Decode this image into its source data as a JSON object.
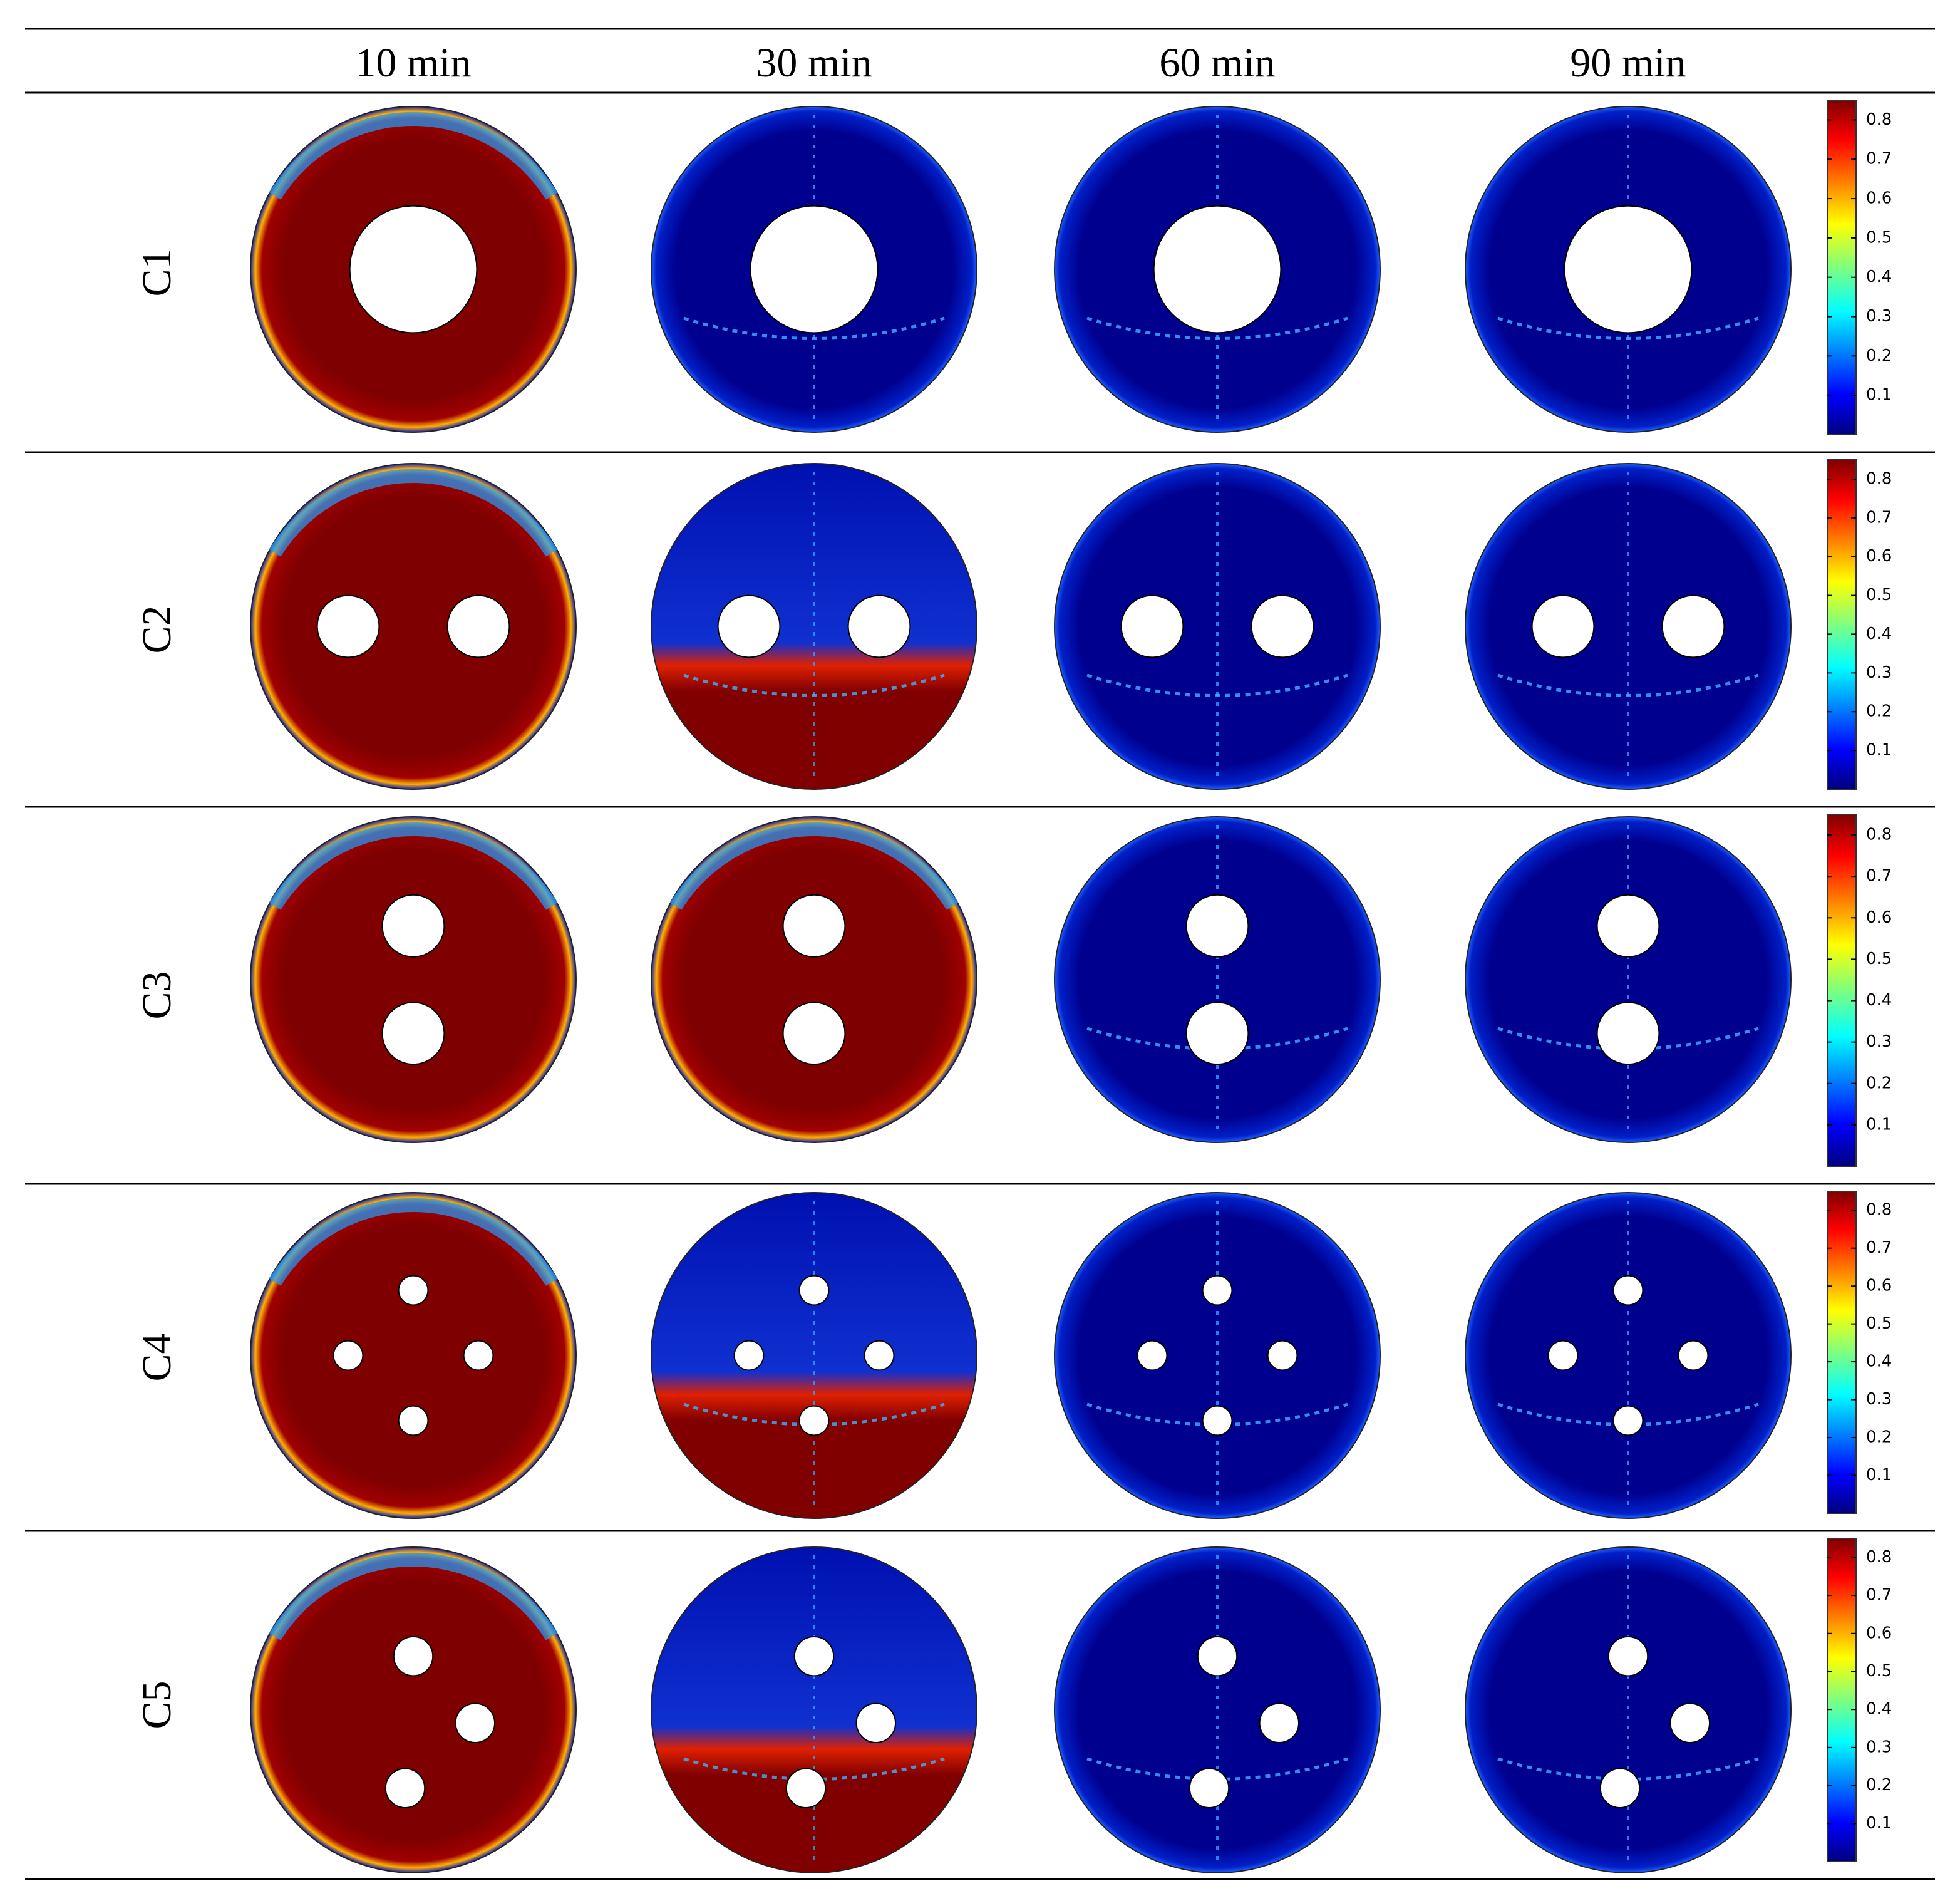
{
  "columns": [
    "10 min",
    "30 min",
    "60 min",
    "90 min"
  ],
  "rows": [
    {
      "label": "C1",
      "colorbar": {
        "range": [
          0,
          0.85
        ],
        "ticks": [
          0.1,
          0.2,
          0.3,
          0.4,
          0.5,
          0.6,
          0.7,
          0.8
        ]
      }
    },
    {
      "label": "C2",
      "colorbar": {
        "range": [
          0,
          0.85
        ],
        "ticks": [
          0.1,
          0.2,
          0.3,
          0.4,
          0.5,
          0.6,
          0.7,
          0.8
        ]
      }
    },
    {
      "label": "C3",
      "colorbar": {
        "range": [
          0,
          0.85
        ],
        "ticks": [
          0.1,
          0.2,
          0.3,
          0.4,
          0.5,
          0.6,
          0.7,
          0.8
        ]
      }
    },
    {
      "label": "C4",
      "colorbar": {
        "range": [
          0,
          0.85
        ],
        "ticks": [
          0.1,
          0.2,
          0.3,
          0.4,
          0.5,
          0.6,
          0.7,
          0.8
        ]
      }
    },
    {
      "label": "C5",
      "colorbar": {
        "range": [
          0,
          0.85
        ],
        "ticks": [
          0.1,
          0.2,
          0.3,
          0.4,
          0.5,
          0.6,
          0.7,
          0.8
        ]
      }
    }
  ]
}
